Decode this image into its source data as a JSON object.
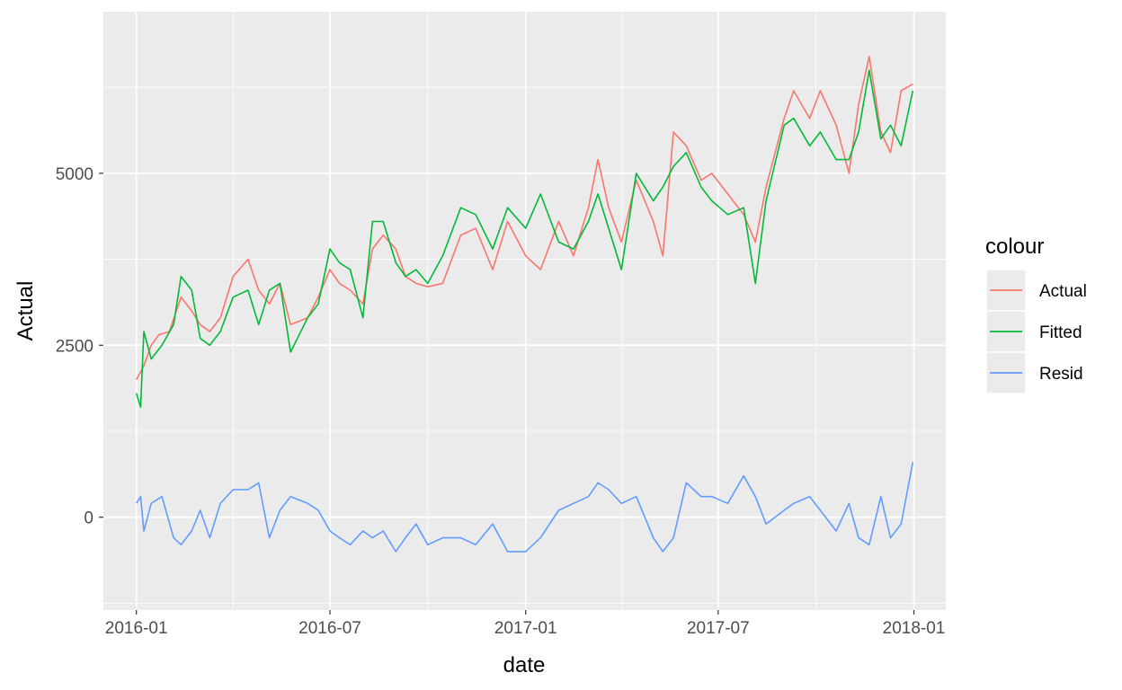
{
  "chart_data": {
    "type": "line",
    "xlabel": "date",
    "ylabel": "Actual",
    "x_range": [
      "2015-12-01",
      "2018-01-31"
    ],
    "y_range": [
      -1350,
      7350
    ],
    "x_ticks": [
      {
        "date": "2016-01-01",
        "label": "2016-01"
      },
      {
        "date": "2016-07-01",
        "label": "2016-07"
      },
      {
        "date": "2017-01-01",
        "label": "2017-01"
      },
      {
        "date": "2017-07-01",
        "label": "2017-07"
      },
      {
        "date": "2018-01-01",
        "label": "2018-01"
      }
    ],
    "y_ticks": [
      0,
      2500,
      5000
    ],
    "grid": true,
    "background": "#ebebeb",
    "legend": {
      "title": "colour",
      "position": "right",
      "entries": [
        "Actual",
        "Fitted",
        "Resid"
      ]
    },
    "series": [
      {
        "name": "Actual",
        "color": "#F8766D",
        "points": [
          [
            "2016-01-01",
            2000
          ],
          [
            "2016-01-08",
            2200
          ],
          [
            "2016-01-15",
            2500
          ],
          [
            "2016-01-22",
            2650
          ],
          [
            "2016-02-01",
            2700
          ],
          [
            "2016-02-12",
            3200
          ],
          [
            "2016-02-22",
            3000
          ],
          [
            "2016-03-01",
            2800
          ],
          [
            "2016-03-10",
            2700
          ],
          [
            "2016-03-20",
            2900
          ],
          [
            "2016-04-01",
            3500
          ],
          [
            "2016-04-15",
            3750
          ],
          [
            "2016-04-25",
            3300
          ],
          [
            "2016-05-05",
            3100
          ],
          [
            "2016-05-15",
            3400
          ],
          [
            "2016-05-25",
            2800
          ],
          [
            "2016-06-10",
            2900
          ],
          [
            "2016-06-20",
            3200
          ],
          [
            "2016-07-01",
            3600
          ],
          [
            "2016-07-10",
            3400
          ],
          [
            "2016-07-20",
            3300
          ],
          [
            "2016-08-01",
            3100
          ],
          [
            "2016-08-10",
            3900
          ],
          [
            "2016-08-20",
            4100
          ],
          [
            "2016-09-01",
            3900
          ],
          [
            "2016-09-10",
            3500
          ],
          [
            "2016-09-20",
            3400
          ],
          [
            "2016-10-01",
            3350
          ],
          [
            "2016-10-15",
            3400
          ],
          [
            "2016-11-01",
            4100
          ],
          [
            "2016-11-15",
            4200
          ],
          [
            "2016-12-01",
            3600
          ],
          [
            "2016-12-15",
            4300
          ],
          [
            "2017-01-01",
            3800
          ],
          [
            "2017-01-15",
            3600
          ],
          [
            "2017-02-01",
            4300
          ],
          [
            "2017-02-15",
            3800
          ],
          [
            "2017-03-01",
            4500
          ],
          [
            "2017-03-10",
            5200
          ],
          [
            "2017-03-20",
            4500
          ],
          [
            "2017-04-01",
            4000
          ],
          [
            "2017-04-15",
            4900
          ],
          [
            "2017-05-01",
            4300
          ],
          [
            "2017-05-10",
            3800
          ],
          [
            "2017-05-20",
            5600
          ],
          [
            "2017-06-01",
            5400
          ],
          [
            "2017-06-15",
            4900
          ],
          [
            "2017-06-25",
            5000
          ],
          [
            "2017-07-10",
            4700
          ],
          [
            "2017-07-25",
            4400
          ],
          [
            "2017-08-05",
            4000
          ],
          [
            "2017-08-15",
            4800
          ],
          [
            "2017-09-01",
            5800
          ],
          [
            "2017-09-10",
            6200
          ],
          [
            "2017-09-25",
            5800
          ],
          [
            "2017-10-05",
            6200
          ],
          [
            "2017-10-20",
            5700
          ],
          [
            "2017-11-01",
            5000
          ],
          [
            "2017-11-10",
            6000
          ],
          [
            "2017-11-20",
            6700
          ],
          [
            "2017-12-01",
            5600
          ],
          [
            "2017-12-10",
            5300
          ],
          [
            "2017-12-20",
            6200
          ],
          [
            "2017-12-31",
            6300
          ]
        ]
      },
      {
        "name": "Fitted",
        "color": "#00BA38",
        "points": [
          [
            "2016-01-01",
            1800
          ],
          [
            "2016-01-05",
            1600
          ],
          [
            "2016-01-08",
            2700
          ],
          [
            "2016-01-15",
            2300
          ],
          [
            "2016-01-25",
            2500
          ],
          [
            "2016-02-05",
            2800
          ],
          [
            "2016-02-12",
            3500
          ],
          [
            "2016-02-22",
            3300
          ],
          [
            "2016-03-01",
            2600
          ],
          [
            "2016-03-10",
            2500
          ],
          [
            "2016-03-20",
            2700
          ],
          [
            "2016-04-01",
            3200
          ],
          [
            "2016-04-15",
            3300
          ],
          [
            "2016-04-25",
            2800
          ],
          [
            "2016-05-05",
            3300
          ],
          [
            "2016-05-15",
            3400
          ],
          [
            "2016-05-25",
            2400
          ],
          [
            "2016-06-10",
            2900
          ],
          [
            "2016-06-20",
            3100
          ],
          [
            "2016-07-01",
            3900
          ],
          [
            "2016-07-10",
            3700
          ],
          [
            "2016-07-20",
            3600
          ],
          [
            "2016-08-01",
            2900
          ],
          [
            "2016-08-10",
            4300
          ],
          [
            "2016-08-20",
            4300
          ],
          [
            "2016-09-01",
            3700
          ],
          [
            "2016-09-10",
            3500
          ],
          [
            "2016-09-20",
            3600
          ],
          [
            "2016-10-01",
            3400
          ],
          [
            "2016-10-15",
            3800
          ],
          [
            "2016-11-01",
            4500
          ],
          [
            "2016-11-15",
            4400
          ],
          [
            "2016-12-01",
            3900
          ],
          [
            "2016-12-15",
            4500
          ],
          [
            "2017-01-01",
            4200
          ],
          [
            "2017-01-15",
            4700
          ],
          [
            "2017-02-01",
            4000
          ],
          [
            "2017-02-15",
            3900
          ],
          [
            "2017-03-01",
            4300
          ],
          [
            "2017-03-10",
            4700
          ],
          [
            "2017-03-20",
            4200
          ],
          [
            "2017-04-01",
            3600
          ],
          [
            "2017-04-15",
            5000
          ],
          [
            "2017-05-01",
            4600
          ],
          [
            "2017-05-10",
            4800
          ],
          [
            "2017-05-20",
            5100
          ],
          [
            "2017-06-01",
            5300
          ],
          [
            "2017-06-15",
            4800
          ],
          [
            "2017-06-25",
            4600
          ],
          [
            "2017-07-10",
            4400
          ],
          [
            "2017-07-25",
            4500
          ],
          [
            "2017-08-05",
            3400
          ],
          [
            "2017-08-15",
            4600
          ],
          [
            "2017-09-01",
            5700
          ],
          [
            "2017-09-10",
            5800
          ],
          [
            "2017-09-25",
            5400
          ],
          [
            "2017-10-05",
            5600
          ],
          [
            "2017-10-20",
            5200
          ],
          [
            "2017-11-01",
            5200
          ],
          [
            "2017-11-10",
            5600
          ],
          [
            "2017-11-20",
            6500
          ],
          [
            "2017-12-01",
            5500
          ],
          [
            "2017-12-10",
            5700
          ],
          [
            "2017-12-20",
            5400
          ],
          [
            "2017-12-31",
            6200
          ]
        ]
      },
      {
        "name": "Resid",
        "color": "#619CFF",
        "points": [
          [
            "2016-01-01",
            200
          ],
          [
            "2016-01-05",
            300
          ],
          [
            "2016-01-08",
            -200
          ],
          [
            "2016-01-15",
            200
          ],
          [
            "2016-01-25",
            300
          ],
          [
            "2016-02-05",
            -300
          ],
          [
            "2016-02-12",
            -400
          ],
          [
            "2016-02-22",
            -200
          ],
          [
            "2016-03-01",
            100
          ],
          [
            "2016-03-10",
            -300
          ],
          [
            "2016-03-20",
            200
          ],
          [
            "2016-04-01",
            400
          ],
          [
            "2016-04-15",
            400
          ],
          [
            "2016-04-25",
            500
          ],
          [
            "2016-05-05",
            -300
          ],
          [
            "2016-05-15",
            100
          ],
          [
            "2016-05-25",
            300
          ],
          [
            "2016-06-10",
            200
          ],
          [
            "2016-06-20",
            100
          ],
          [
            "2016-07-01",
            -200
          ],
          [
            "2016-07-10",
            -300
          ],
          [
            "2016-07-20",
            -400
          ],
          [
            "2016-08-01",
            -200
          ],
          [
            "2016-08-10",
            -300
          ],
          [
            "2016-08-20",
            -200
          ],
          [
            "2016-09-01",
            -500
          ],
          [
            "2016-09-10",
            -300
          ],
          [
            "2016-09-20",
            -100
          ],
          [
            "2016-10-01",
            -400
          ],
          [
            "2016-10-15",
            -300
          ],
          [
            "2016-11-01",
            -300
          ],
          [
            "2016-11-15",
            -400
          ],
          [
            "2016-12-01",
            -100
          ],
          [
            "2016-12-15",
            -500
          ],
          [
            "2017-01-01",
            -500
          ],
          [
            "2017-01-15",
            -300
          ],
          [
            "2017-02-01",
            100
          ],
          [
            "2017-02-15",
            200
          ],
          [
            "2017-03-01",
            300
          ],
          [
            "2017-03-10",
            500
          ],
          [
            "2017-03-20",
            400
          ],
          [
            "2017-04-01",
            200
          ],
          [
            "2017-04-15",
            300
          ],
          [
            "2017-05-01",
            -300
          ],
          [
            "2017-05-10",
            -500
          ],
          [
            "2017-05-20",
            -300
          ],
          [
            "2017-06-01",
            500
          ],
          [
            "2017-06-15",
            300
          ],
          [
            "2017-06-25",
            300
          ],
          [
            "2017-07-10",
            200
          ],
          [
            "2017-07-25",
            600
          ],
          [
            "2017-08-05",
            300
          ],
          [
            "2017-08-15",
            -100
          ],
          [
            "2017-09-01",
            100
          ],
          [
            "2017-09-10",
            200
          ],
          [
            "2017-09-25",
            300
          ],
          [
            "2017-10-05",
            100
          ],
          [
            "2017-10-20",
            -200
          ],
          [
            "2017-11-01",
            200
          ],
          [
            "2017-11-10",
            -300
          ],
          [
            "2017-11-20",
            -400
          ],
          [
            "2017-12-01",
            300
          ],
          [
            "2017-12-10",
            -300
          ],
          [
            "2017-12-20",
            -100
          ],
          [
            "2017-12-31",
            800
          ]
        ]
      }
    ]
  }
}
